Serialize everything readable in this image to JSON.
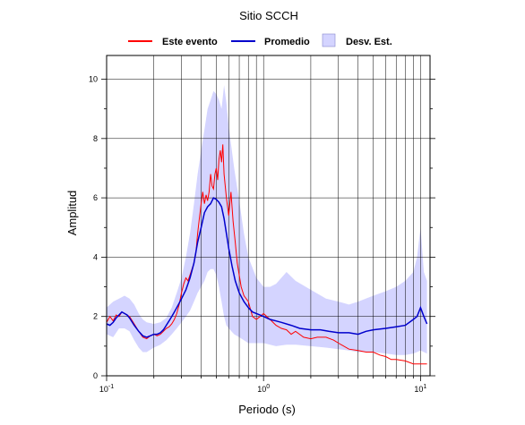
{
  "chart_data": {
    "type": "line",
    "title": "Sitio SCCH",
    "xlabel": "Periodo (s)",
    "ylabel": "Amplitud",
    "xscale": "log",
    "xlim": [
      0.1,
      11.5
    ],
    "ylim": [
      0,
      10.8
    ],
    "grid": true,
    "legend_position": "top",
    "x_ticks": [
      {
        "value": 0.1,
        "base": "10",
        "exp": "-1"
      },
      {
        "value": 1,
        "base": "10",
        "exp": "0"
      },
      {
        "value": 10,
        "base": "10",
        "exp": "1"
      }
    ],
    "y_ticks": [
      {
        "value": 0,
        "label": "0"
      },
      {
        "value": 2,
        "label": "2"
      },
      {
        "value": 4,
        "label": "4"
      },
      {
        "value": 6,
        "label": "6"
      },
      {
        "value": 8,
        "label": "8"
      },
      {
        "value": 10,
        "label": "10"
      }
    ],
    "legend": {
      "event_label": "Este evento",
      "mean_label": "Promedio",
      "std_label": "Desv. Est."
    },
    "colors": {
      "event": "#ff0000",
      "mean": "#0000cc",
      "std_fill": "#d4d4ff"
    },
    "series": [
      {
        "name": "Este evento",
        "x": [
          0.1,
          0.105,
          0.11,
          0.115,
          0.12,
          0.125,
          0.13,
          0.135,
          0.14,
          0.15,
          0.16,
          0.17,
          0.18,
          0.19,
          0.2,
          0.21,
          0.22,
          0.23,
          0.24,
          0.25,
          0.26,
          0.27,
          0.28,
          0.29,
          0.3,
          0.31,
          0.32,
          0.33,
          0.34,
          0.35,
          0.36,
          0.37,
          0.38,
          0.39,
          0.4,
          0.41,
          0.42,
          0.43,
          0.44,
          0.45,
          0.46,
          0.47,
          0.48,
          0.49,
          0.5,
          0.51,
          0.52,
          0.53,
          0.54,
          0.55,
          0.56,
          0.58,
          0.6,
          0.62,
          0.64,
          0.66,
          0.68,
          0.7,
          0.72,
          0.75,
          0.8,
          0.85,
          0.9,
          0.95,
          1.0,
          1.1,
          1.2,
          1.3,
          1.4,
          1.5,
          1.6,
          1.8,
          2.0,
          2.2,
          2.5,
          2.8,
          3.0,
          3.5,
          4.0,
          4.5,
          5.0,
          5.5,
          6.0,
          6.5,
          7.0,
          8.0,
          9.0,
          10.0,
          11.0
        ],
        "y": [
          1.8,
          2.0,
          1.85,
          2.05,
          2.0,
          2.15,
          2.1,
          2.05,
          2.0,
          1.75,
          1.5,
          1.3,
          1.25,
          1.35,
          1.4,
          1.35,
          1.4,
          1.5,
          1.6,
          1.65,
          1.75,
          1.9,
          2.1,
          2.4,
          2.8,
          3.1,
          3.3,
          3.2,
          3.4,
          3.6,
          3.8,
          4.1,
          4.8,
          5.3,
          5.8,
          6.2,
          5.8,
          6.1,
          5.9,
          6.2,
          6.8,
          6.4,
          6.3,
          6.8,
          7.0,
          6.6,
          7.3,
          7.6,
          7.2,
          7.8,
          6.8,
          6.0,
          5.4,
          6.2,
          5.2,
          4.5,
          3.8,
          3.4,
          3.0,
          2.7,
          2.5,
          2.0,
          1.9,
          2.0,
          2.1,
          1.9,
          1.7,
          1.6,
          1.55,
          1.4,
          1.5,
          1.3,
          1.25,
          1.3,
          1.3,
          1.2,
          1.1,
          0.9,
          0.85,
          0.8,
          0.8,
          0.7,
          0.65,
          0.55,
          0.55,
          0.5,
          0.4,
          0.4,
          0.4
        ]
      },
      {
        "name": "Promedio",
        "x": [
          0.1,
          0.105,
          0.11,
          0.115,
          0.12,
          0.125,
          0.13,
          0.135,
          0.14,
          0.15,
          0.16,
          0.17,
          0.18,
          0.19,
          0.2,
          0.21,
          0.22,
          0.23,
          0.24,
          0.25,
          0.26,
          0.27,
          0.28,
          0.29,
          0.3,
          0.32,
          0.34,
          0.36,
          0.38,
          0.4,
          0.42,
          0.44,
          0.46,
          0.48,
          0.5,
          0.52,
          0.54,
          0.56,
          0.58,
          0.6,
          0.63,
          0.66,
          0.7,
          0.75,
          0.8,
          0.85,
          0.9,
          1.0,
          1.1,
          1.2,
          1.3,
          1.5,
          1.7,
          2.0,
          2.3,
          2.6,
          3.0,
          3.5,
          4.0,
          4.5,
          5.0,
          6.0,
          7.0,
          8.0,
          9.0,
          9.5,
          10.0,
          10.5,
          11.0
        ],
        "y": [
          1.75,
          1.7,
          1.8,
          1.95,
          2.05,
          2.15,
          2.1,
          2.05,
          1.95,
          1.7,
          1.5,
          1.35,
          1.3,
          1.35,
          1.4,
          1.4,
          1.45,
          1.55,
          1.7,
          1.85,
          2.0,
          2.15,
          2.3,
          2.45,
          2.6,
          2.9,
          3.3,
          3.8,
          4.5,
          5.0,
          5.5,
          5.7,
          5.8,
          6.0,
          5.95,
          5.85,
          5.7,
          5.3,
          4.8,
          4.3,
          3.7,
          3.2,
          2.8,
          2.5,
          2.3,
          2.15,
          2.1,
          2.0,
          1.9,
          1.85,
          1.8,
          1.7,
          1.6,
          1.55,
          1.55,
          1.5,
          1.45,
          1.45,
          1.4,
          1.5,
          1.55,
          1.6,
          1.65,
          1.7,
          1.9,
          2.0,
          2.3,
          2.0,
          1.75
        ]
      }
    ],
    "std_band": {
      "x": [
        0.1,
        0.11,
        0.12,
        0.13,
        0.14,
        0.15,
        0.16,
        0.17,
        0.18,
        0.2,
        0.22,
        0.24,
        0.26,
        0.28,
        0.3,
        0.32,
        0.34,
        0.36,
        0.38,
        0.4,
        0.42,
        0.44,
        0.46,
        0.48,
        0.5,
        0.52,
        0.54,
        0.56,
        0.58,
        0.6,
        0.65,
        0.7,
        0.75,
        0.8,
        0.9,
        1.0,
        1.1,
        1.2,
        1.4,
        1.6,
        2.0,
        2.5,
        3.0,
        3.5,
        4.0,
        5.0,
        6.0,
        7.0,
        8.0,
        9.0,
        9.5,
        10.0,
        10.5,
        11.0
      ],
      "upper": [
        2.3,
        2.5,
        2.6,
        2.7,
        2.6,
        2.4,
        2.1,
        1.9,
        1.8,
        1.75,
        1.8,
        1.95,
        2.3,
        2.8,
        3.3,
        4.0,
        4.8,
        5.8,
        6.8,
        7.6,
        8.3,
        9.0,
        9.3,
        9.6,
        9.5,
        9.3,
        9.0,
        9.8,
        9.2,
        8.4,
        7.0,
        5.9,
        4.8,
        4.0,
        3.3,
        3.0,
        3.0,
        3.1,
        3.5,
        3.2,
        2.9,
        2.6,
        2.5,
        2.4,
        2.5,
        2.7,
        2.85,
        3.0,
        3.2,
        3.5,
        4.0,
        5.0,
        3.5,
        3.2
      ],
      "lower": [
        1.4,
        1.3,
        1.6,
        1.6,
        1.5,
        1.2,
        0.95,
        0.8,
        0.8,
        0.95,
        1.05,
        1.2,
        1.4,
        1.6,
        1.8,
        2.0,
        2.2,
        2.5,
        2.8,
        3.0,
        3.2,
        3.5,
        3.6,
        3.6,
        3.4,
        3.0,
        2.5,
        2.0,
        1.7,
        1.6,
        1.4,
        1.3,
        1.2,
        1.1,
        1.1,
        1.1,
        1.05,
        1.0,
        1.05,
        1.05,
        1.0,
        0.95,
        0.9,
        0.85,
        0.8,
        0.8,
        0.75,
        0.7,
        0.7,
        0.75,
        0.8,
        0.85,
        0.8,
        0.75
      ]
    }
  }
}
